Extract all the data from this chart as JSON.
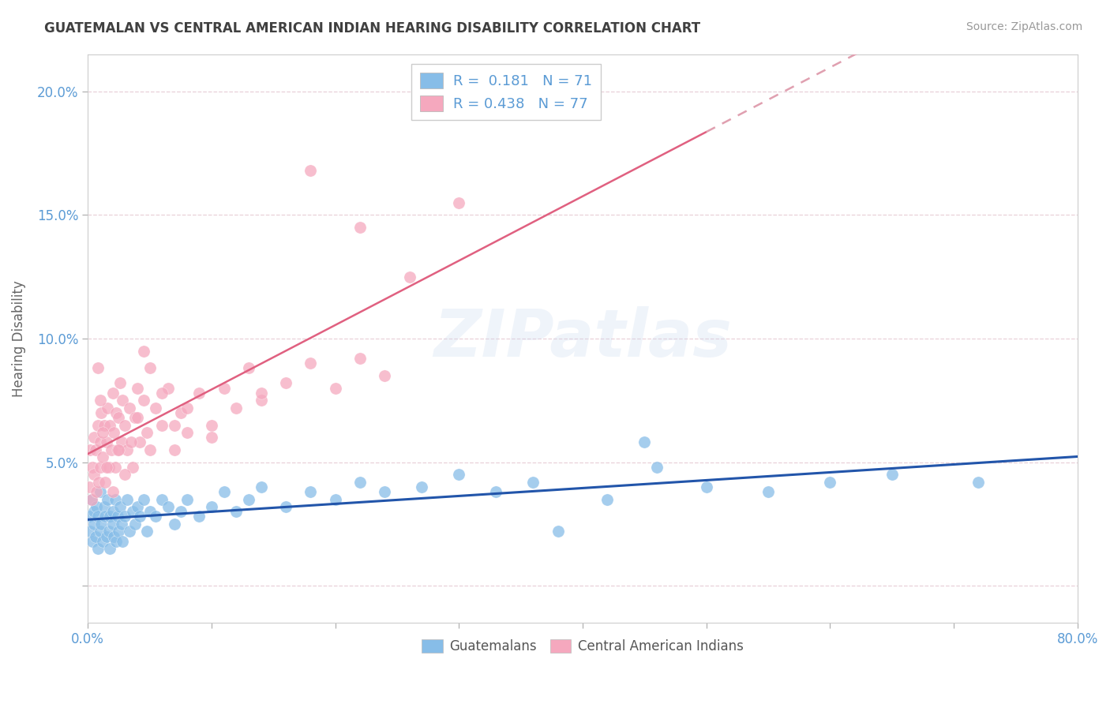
{
  "title": "GUATEMALAN VS CENTRAL AMERICAN INDIAN HEARING DISABILITY CORRELATION CHART",
  "source": "Source: ZipAtlas.com",
  "xlim": [
    0.0,
    0.8
  ],
  "ylim": [
    -0.015,
    0.215
  ],
  "yticks": [
    0.0,
    0.05,
    0.1,
    0.15,
    0.2
  ],
  "xticks": [
    0.0,
    0.1,
    0.2,
    0.3,
    0.4,
    0.5,
    0.6,
    0.7,
    0.8
  ],
  "ylabel": "Hearing Disability",
  "blue_color": "#87bde8",
  "pink_color": "#f5a8be",
  "trend_blue": "#2255aa",
  "trend_pink": "#e06080",
  "trend_pink_dashed": "#e0a0b0",
  "R_blue": 0.181,
  "N_blue": 71,
  "R_pink": 0.438,
  "N_pink": 77,
  "legend_label_blue": "Guatemalans",
  "legend_label_pink": "Central American Indians",
  "title_color": "#404040",
  "axis_label_color": "#5b9bd5",
  "watermark": "ZIPatlas",
  "grid_color": "#e8d0d8",
  "blue_scatter_x": [
    0.001,
    0.002,
    0.003,
    0.004,
    0.005,
    0.005,
    0.006,
    0.007,
    0.008,
    0.008,
    0.01,
    0.01,
    0.011,
    0.012,
    0.013,
    0.014,
    0.015,
    0.016,
    0.017,
    0.018,
    0.018,
    0.02,
    0.02,
    0.021,
    0.022,
    0.023,
    0.024,
    0.025,
    0.026,
    0.027,
    0.028,
    0.03,
    0.032,
    0.034,
    0.036,
    0.038,
    0.04,
    0.042,
    0.045,
    0.048,
    0.05,
    0.055,
    0.06,
    0.065,
    0.07,
    0.075,
    0.08,
    0.09,
    0.1,
    0.11,
    0.12,
    0.13,
    0.14,
    0.16,
    0.18,
    0.2,
    0.22,
    0.24,
    0.27,
    0.3,
    0.33,
    0.36,
    0.42,
    0.46,
    0.5,
    0.55,
    0.6,
    0.38,
    0.45,
    0.65,
    0.72
  ],
  "blue_scatter_y": [
    0.028,
    0.022,
    0.035,
    0.018,
    0.03,
    0.025,
    0.02,
    0.032,
    0.015,
    0.028,
    0.022,
    0.038,
    0.025,
    0.018,
    0.032,
    0.028,
    0.02,
    0.035,
    0.022,
    0.028,
    0.015,
    0.03,
    0.025,
    0.02,
    0.035,
    0.018,
    0.028,
    0.022,
    0.032,
    0.025,
    0.018,
    0.028,
    0.035,
    0.022,
    0.03,
    0.025,
    0.032,
    0.028,
    0.035,
    0.022,
    0.03,
    0.028,
    0.035,
    0.032,
    0.025,
    0.03,
    0.035,
    0.028,
    0.032,
    0.038,
    0.03,
    0.035,
    0.04,
    0.032,
    0.038,
    0.035,
    0.042,
    0.038,
    0.04,
    0.045,
    0.038,
    0.042,
    0.035,
    0.048,
    0.04,
    0.038,
    0.042,
    0.022,
    0.058,
    0.045,
    0.042
  ],
  "pink_scatter_x": [
    0.001,
    0.002,
    0.003,
    0.004,
    0.005,
    0.005,
    0.006,
    0.007,
    0.008,
    0.009,
    0.01,
    0.01,
    0.011,
    0.012,
    0.013,
    0.014,
    0.015,
    0.016,
    0.017,
    0.018,
    0.019,
    0.02,
    0.021,
    0.022,
    0.023,
    0.024,
    0.025,
    0.026,
    0.027,
    0.028,
    0.03,
    0.032,
    0.034,
    0.036,
    0.038,
    0.04,
    0.042,
    0.045,
    0.048,
    0.05,
    0.055,
    0.06,
    0.065,
    0.07,
    0.075,
    0.08,
    0.09,
    0.1,
    0.11,
    0.12,
    0.13,
    0.14,
    0.16,
    0.18,
    0.2,
    0.22,
    0.24,
    0.02,
    0.015,
    0.025,
    0.03,
    0.01,
    0.008,
    0.012,
    0.04,
    0.05,
    0.06,
    0.035,
    0.045,
    0.07,
    0.08,
    0.1,
    0.14,
    0.18,
    0.22,
    0.26,
    0.3
  ],
  "pink_scatter_y": [
    0.04,
    0.055,
    0.035,
    0.048,
    0.06,
    0.045,
    0.055,
    0.038,
    0.065,
    0.042,
    0.058,
    0.048,
    0.07,
    0.052,
    0.065,
    0.042,
    0.058,
    0.072,
    0.048,
    0.065,
    0.055,
    0.078,
    0.062,
    0.048,
    0.07,
    0.055,
    0.068,
    0.082,
    0.058,
    0.075,
    0.065,
    0.055,
    0.072,
    0.048,
    0.068,
    0.08,
    0.058,
    0.075,
    0.062,
    0.088,
    0.072,
    0.065,
    0.08,
    0.055,
    0.07,
    0.062,
    0.078,
    0.065,
    0.08,
    0.072,
    0.088,
    0.075,
    0.082,
    0.09,
    0.08,
    0.092,
    0.085,
    0.038,
    0.048,
    0.055,
    0.045,
    0.075,
    0.088,
    0.062,
    0.068,
    0.055,
    0.078,
    0.058,
    0.095,
    0.065,
    0.072,
    0.06,
    0.078,
    0.168,
    0.145,
    0.125,
    0.155
  ]
}
